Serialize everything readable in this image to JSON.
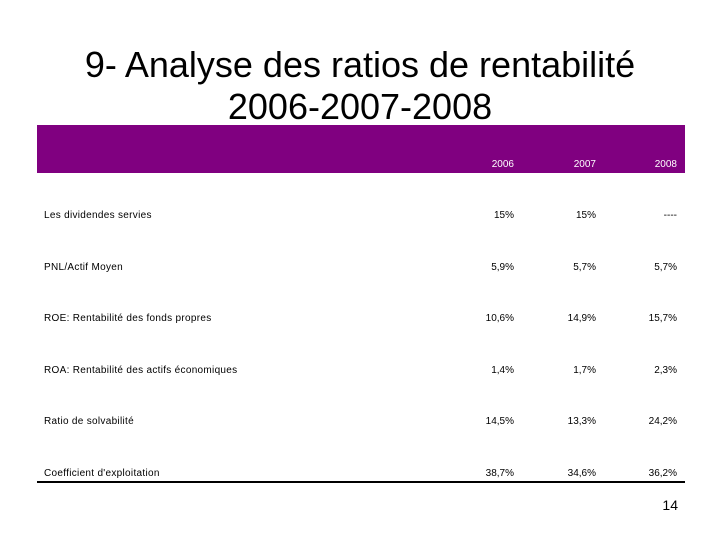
{
  "title": {
    "line1": "9- Analyse des ratios de rentabilité",
    "line2": "2006-2007-2008"
  },
  "table": {
    "header_color": "#800080",
    "years": [
      "2006",
      "2007",
      "2008"
    ],
    "rows": [
      {
        "label": "Les dividendes servies",
        "values": [
          "15%",
          "15%",
          "----"
        ]
      },
      {
        "label": "PNL/Actif Moyen",
        "values": [
          "5,9%",
          "5,7%",
          "5,7%"
        ]
      },
      {
        "label": "ROE: Rentabilité des fonds propres",
        "values": [
          "10,6%",
          "14,9%",
          "15,7%"
        ]
      },
      {
        "label": "ROA: Rentabilité des actifs économiques",
        "values": [
          "1,4%",
          "1,7%",
          "2,3%"
        ]
      },
      {
        "label": "Ratio de solvabilité",
        "values": [
          "14,5%",
          "13,3%",
          "24,2%"
        ]
      },
      {
        "label": "Coefficient d'exploitation",
        "values": [
          "38,7%",
          "34,6%",
          "36,2%"
        ]
      }
    ]
  },
  "page_number": "14"
}
